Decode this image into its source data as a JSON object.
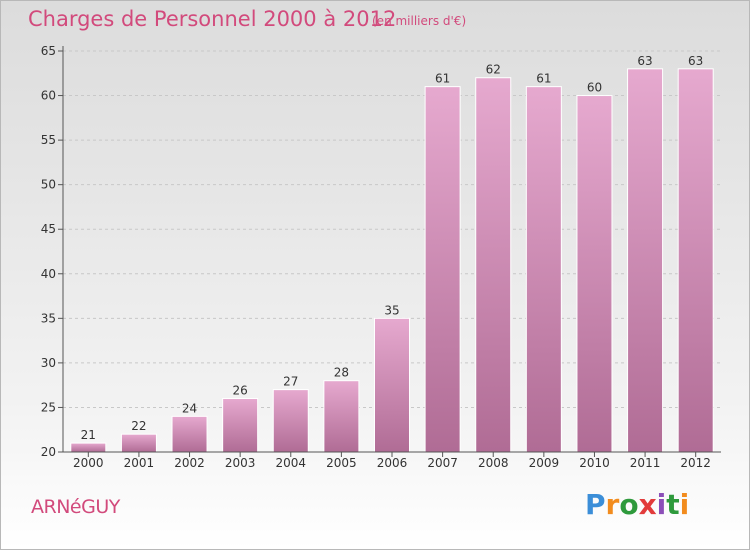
{
  "header": {
    "title": "Charges de Personnel 2000 à 2012",
    "subtitle": "(en milliers d'€)"
  },
  "footer": {
    "commune": "ARNéGUY",
    "brand_letters": [
      "P",
      "r",
      "o",
      "x",
      "i",
      "t",
      "i"
    ],
    "brand_colors": [
      "#3b8ed8",
      "#f28c1e",
      "#2e9a3c",
      "#e23b3b",
      "#8c4fb8",
      "#2e9a3c",
      "#f28c1e"
    ]
  },
  "colors": {
    "bar_light": "#e6a9cf",
    "bar_dark": "#b06c95",
    "label": "#333333",
    "axis": "#555555",
    "grid": "#c8c8c8"
  },
  "chart_data": {
    "type": "bar",
    "categories": [
      "2000",
      "2001",
      "2002",
      "2003",
      "2004",
      "2005",
      "2006",
      "2007",
      "2008",
      "2009",
      "2010",
      "2011",
      "2012"
    ],
    "values": [
      21,
      22,
      24,
      26,
      27,
      28,
      35,
      61,
      62,
      61,
      60,
      63,
      63
    ],
    "ylim": [
      20,
      65
    ],
    "yticks": [
      20,
      25,
      30,
      35,
      40,
      45,
      50,
      55,
      60,
      65
    ],
    "grid": true,
    "xlabel": "",
    "ylabel": ""
  }
}
